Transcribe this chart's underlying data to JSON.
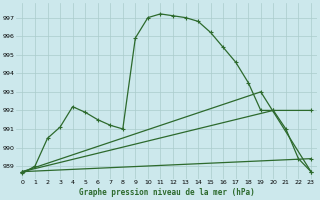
{
  "bg_color": "#cce8ec",
  "grid_color": "#aacccc",
  "line_color": "#2d6a2d",
  "xlabel": "Graphe pression niveau de la mer (hPa)",
  "ylim": [
    988.3,
    997.8
  ],
  "xlim": [
    -0.5,
    23.5
  ],
  "yticks": [
    989,
    990,
    991,
    992,
    993,
    994,
    995,
    996,
    997
  ],
  "xticks": [
    0,
    1,
    2,
    3,
    4,
    5,
    6,
    7,
    8,
    9,
    10,
    11,
    12,
    13,
    14,
    15,
    16,
    17,
    18,
    19,
    20,
    21,
    22,
    23
  ],
  "line1_x": [
    0,
    1,
    2,
    3,
    4,
    5,
    6,
    7,
    8,
    9,
    10,
    11,
    12,
    13,
    14,
    15,
    16,
    17,
    18,
    19,
    20,
    21,
    22,
    23
  ],
  "line1_y": [
    988.6,
    989.0,
    990.5,
    991.1,
    992.2,
    991.9,
    991.5,
    991.2,
    991.0,
    995.9,
    997.0,
    997.2,
    997.1,
    997.0,
    996.8,
    996.2,
    995.4,
    994.6,
    993.5,
    992.0,
    992.0,
    991.0,
    989.4,
    988.7
  ],
  "line2_x": [
    0,
    19,
    23
  ],
  "line2_y": [
    988.7,
    993.0,
    988.7
  ],
  "line3_x": [
    0,
    20,
    23
  ],
  "line3_y": [
    988.7,
    992.0,
    992.0
  ],
  "line4_x": [
    0,
    23
  ],
  "line4_y": [
    988.7,
    989.4
  ]
}
